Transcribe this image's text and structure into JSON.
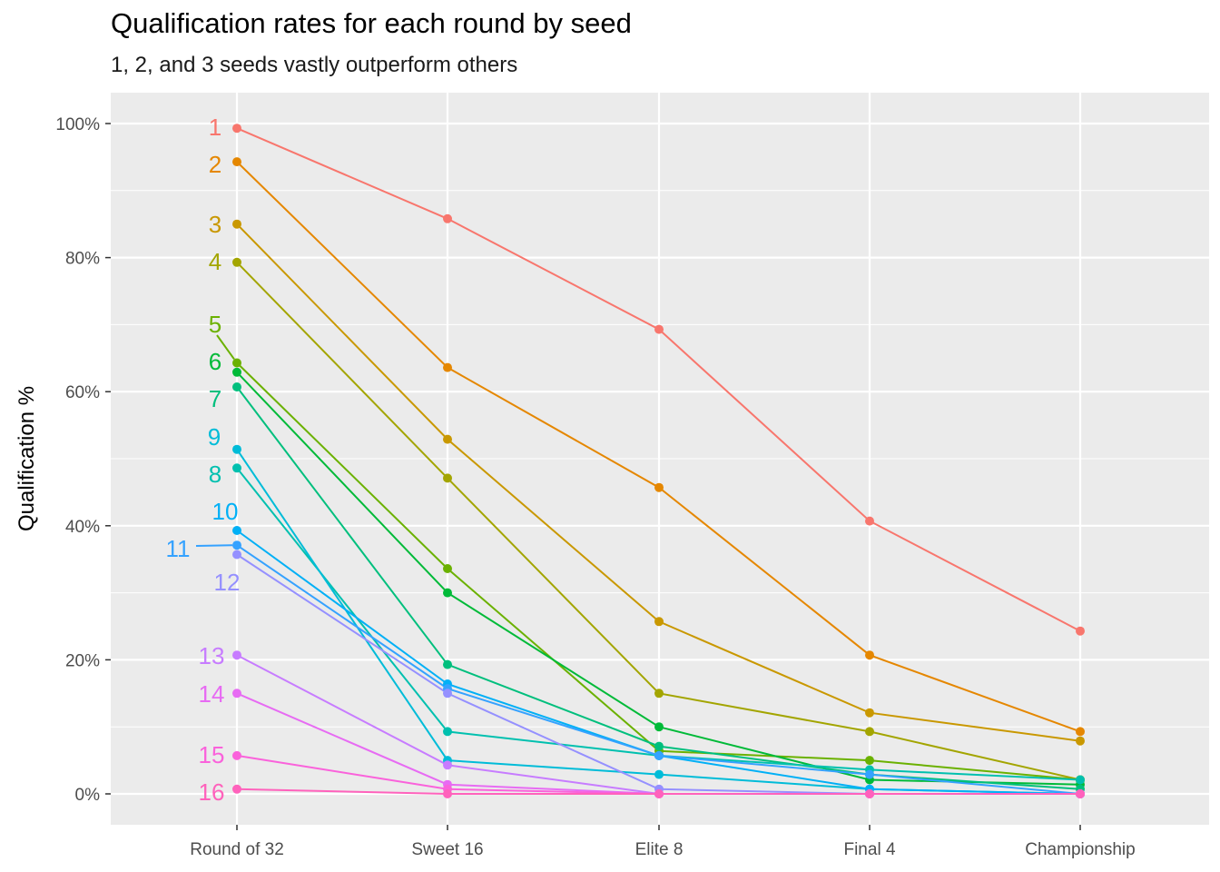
{
  "chart_data": {
    "type": "line",
    "title": "Qualification rates for each round by seed",
    "subtitle": "1, 2, and 3 seeds vastly outperform others",
    "xlabel": "",
    "ylabel": "Qualification %",
    "categories": [
      "Round of 32",
      "Sweet 16",
      "Elite 8",
      "Final 4",
      "Championship"
    ],
    "ylim": [
      -4.5,
      105
    ],
    "yticks": [
      0,
      20,
      40,
      60,
      80,
      100
    ],
    "ytick_labels": [
      "0%",
      "20%",
      "40%",
      "60%",
      "80%",
      "100%"
    ],
    "grid": true,
    "legend": "none",
    "series": [
      {
        "name": "1",
        "color": "#F8766D",
        "values": [
          99.3,
          85.8,
          69.3,
          40.7,
          24.3
        ]
      },
      {
        "name": "2",
        "color": "#E58700",
        "values": [
          94.3,
          63.6,
          45.7,
          20.7,
          9.3
        ]
      },
      {
        "name": "3",
        "color": "#C99800",
        "values": [
          85.0,
          52.9,
          25.7,
          12.1,
          7.9
        ]
      },
      {
        "name": "4",
        "color": "#A3A500",
        "values": [
          79.3,
          47.1,
          15.0,
          9.3,
          2.1
        ]
      },
      {
        "name": "5",
        "color": "#6BB100",
        "values": [
          64.3,
          33.6,
          6.4,
          5.0,
          2.1
        ]
      },
      {
        "name": "6",
        "color": "#00BA38",
        "values": [
          62.9,
          30.0,
          10.0,
          2.1,
          1.4
        ]
      },
      {
        "name": "7",
        "color": "#00BF7D",
        "values": [
          60.7,
          19.3,
          7.1,
          2.9,
          0.7
        ]
      },
      {
        "name": "8",
        "color": "#00C0AF",
        "values": [
          48.6,
          9.3,
          5.7,
          3.6,
          2.1
        ]
      },
      {
        "name": "9",
        "color": "#00BCD8",
        "values": [
          51.4,
          5.0,
          2.9,
          0.7,
          0.0
        ]
      },
      {
        "name": "10",
        "color": "#00B0F6",
        "values": [
          39.3,
          16.4,
          5.7,
          0.7,
          0.0
        ]
      },
      {
        "name": "11",
        "color": "#35A2FF",
        "values": [
          37.1,
          15.7,
          5.7,
          2.9,
          0.0
        ]
      },
      {
        "name": "12",
        "color": "#9590FF",
        "values": [
          35.7,
          15.0,
          0.7,
          0.0,
          0.0
        ]
      },
      {
        "name": "13",
        "color": "#C77CFF",
        "values": [
          20.7,
          4.3,
          0.0,
          0.0,
          0.0
        ]
      },
      {
        "name": "14",
        "color": "#E76BF3",
        "values": [
          15.0,
          1.4,
          0.0,
          0.0,
          0.0
        ]
      },
      {
        "name": "15",
        "color": "#FA62DB",
        "values": [
          5.7,
          0.7,
          0.0,
          0.0,
          0.0
        ]
      },
      {
        "name": "16",
        "color": "#FF62BC",
        "values": [
          0.7,
          0.0,
          0.0,
          0.0,
          0.0
        ]
      }
    ]
  }
}
